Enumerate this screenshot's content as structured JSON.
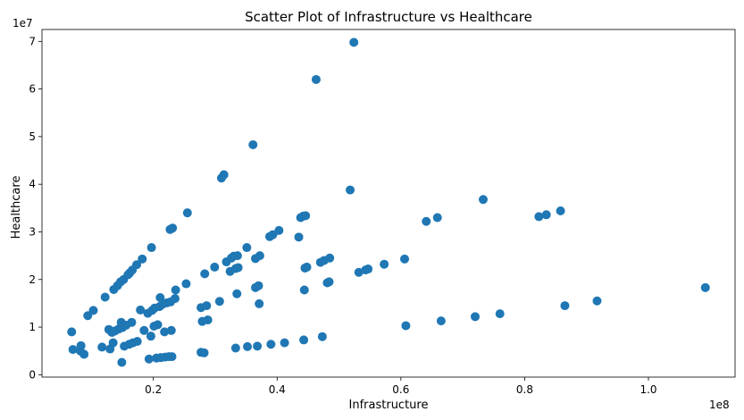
{
  "chart_data": {
    "type": "scatter",
    "title": "Scatter Plot of Infrastructure vs Healthcare",
    "xlabel": "Infrastructure",
    "ylabel": "Healthcare",
    "x_offset_label": "1e8",
    "y_offset_label": "1e7",
    "xlim": [
      2000000,
      114000000
    ],
    "ylim": [
      -500000,
      72500000
    ],
    "x_ticks": [
      20000000,
      40000000,
      60000000,
      80000000,
      100000000
    ],
    "x_tick_labels": [
      "0.2",
      "0.4",
      "0.6",
      "0.8",
      "1.0"
    ],
    "y_ticks": [
      0,
      10000000,
      20000000,
      30000000,
      40000000,
      50000000,
      60000000,
      70000000
    ],
    "y_tick_labels": [
      "0",
      "1",
      "2",
      "3",
      "4",
      "5",
      "6",
      "7"
    ],
    "grid": false,
    "marker_color": "#1f77b4",
    "points": [
      [
        6800000,
        9000000
      ],
      [
        7000000,
        5300000
      ],
      [
        8200000,
        5000000
      ],
      [
        8300000,
        6100000
      ],
      [
        8800000,
        4300000
      ],
      [
        9400000,
        12400000
      ],
      [
        10300000,
        13500000
      ],
      [
        11700000,
        5800000
      ],
      [
        12200000,
        16300000
      ],
      [
        12800000,
        9500000
      ],
      [
        13000000,
        5400000
      ],
      [
        13300000,
        8900000
      ],
      [
        13500000,
        6700000
      ],
      [
        13600000,
        17900000
      ],
      [
        13800000,
        9200000
      ],
      [
        14200000,
        18700000
      ],
      [
        14400000,
        9600000
      ],
      [
        14700000,
        19500000
      ],
      [
        14800000,
        11000000
      ],
      [
        14900000,
        2600000
      ],
      [
        15000000,
        9900000
      ],
      [
        15200000,
        20000000
      ],
      [
        15300000,
        6000000
      ],
      [
        15600000,
        10400000
      ],
      [
        15900000,
        21000000
      ],
      [
        16100000,
        6400000
      ],
      [
        16200000,
        21400000
      ],
      [
        16500000,
        11000000
      ],
      [
        16600000,
        22000000
      ],
      [
        16700000,
        6700000
      ],
      [
        17300000,
        23100000
      ],
      [
        17400000,
        7000000
      ],
      [
        17900000,
        13600000
      ],
      [
        18200000,
        24300000
      ],
      [
        18500000,
        9300000
      ],
      [
        19100000,
        12900000
      ],
      [
        19300000,
        3300000
      ],
      [
        19600000,
        8100000
      ],
      [
        19700000,
        26700000
      ],
      [
        19800000,
        13500000
      ],
      [
        20100000,
        10200000
      ],
      [
        20200000,
        14000000
      ],
      [
        20500000,
        3500000
      ],
      [
        20700000,
        10500000
      ],
      [
        21000000,
        14300000
      ],
      [
        21100000,
        16200000
      ],
      [
        21200000,
        3600000
      ],
      [
        21500000,
        14800000
      ],
      [
        21800000,
        9000000
      ],
      [
        21900000,
        3700000
      ],
      [
        22200000,
        15100000
      ],
      [
        22500000,
        3800000
      ],
      [
        22700000,
        30500000
      ],
      [
        22800000,
        15300000
      ],
      [
        22900000,
        9300000
      ],
      [
        23000000,
        3800000
      ],
      [
        23100000,
        30800000
      ],
      [
        23500000,
        16000000
      ],
      [
        23600000,
        17800000
      ],
      [
        25300000,
        19100000
      ],
      [
        25500000,
        34000000
      ],
      [
        27700000,
        4700000
      ],
      [
        27700000,
        14100000
      ],
      [
        27900000,
        11200000
      ],
      [
        28200000,
        4600000
      ],
      [
        28300000,
        21200000
      ],
      [
        28600000,
        14500000
      ],
      [
        28800000,
        11500000
      ],
      [
        29900000,
        22600000
      ],
      [
        30700000,
        15400000
      ],
      [
        31000000,
        41300000
      ],
      [
        31400000,
        42000000
      ],
      [
        31800000,
        23700000
      ],
      [
        32400000,
        21700000
      ],
      [
        32600000,
        24500000
      ],
      [
        33000000,
        24900000
      ],
      [
        33300000,
        22300000
      ],
      [
        33300000,
        5600000
      ],
      [
        33500000,
        17000000
      ],
      [
        33600000,
        25000000
      ],
      [
        33700000,
        22500000
      ],
      [
        35100000,
        26700000
      ],
      [
        35200000,
        5900000
      ],
      [
        36100000,
        48300000
      ],
      [
        36500000,
        24400000
      ],
      [
        36500000,
        18300000
      ],
      [
        36800000,
        6000000
      ],
      [
        37000000,
        18700000
      ],
      [
        37100000,
        14900000
      ],
      [
        37200000,
        25000000
      ],
      [
        38800000,
        29000000
      ],
      [
        39000000,
        6400000
      ],
      [
        39300000,
        29400000
      ],
      [
        40300000,
        30300000
      ],
      [
        41200000,
        6700000
      ],
      [
        43500000,
        28900000
      ],
      [
        43800000,
        33000000
      ],
      [
        44200000,
        33300000
      ],
      [
        44300000,
        7300000
      ],
      [
        44400000,
        17800000
      ],
      [
        44500000,
        22400000
      ],
      [
        44600000,
        33400000
      ],
      [
        44800000,
        22600000
      ],
      [
        46300000,
        62000000
      ],
      [
        47000000,
        23600000
      ],
      [
        47300000,
        8000000
      ],
      [
        47600000,
        24000000
      ],
      [
        48100000,
        19300000
      ],
      [
        48400000,
        19500000
      ],
      [
        48500000,
        24500000
      ],
      [
        51800000,
        38800000
      ],
      [
        52400000,
        69800000
      ],
      [
        53200000,
        21500000
      ],
      [
        54300000,
        22000000
      ],
      [
        54700000,
        22200000
      ],
      [
        57300000,
        23200000
      ],
      [
        60600000,
        24300000
      ],
      [
        60800000,
        10300000
      ],
      [
        64100000,
        32200000
      ],
      [
        65900000,
        33000000
      ],
      [
        66500000,
        11300000
      ],
      [
        72000000,
        12200000
      ],
      [
        73300000,
        36800000
      ],
      [
        76000000,
        12800000
      ],
      [
        82300000,
        33200000
      ],
      [
        83500000,
        33600000
      ],
      [
        85800000,
        34400000
      ],
      [
        86500000,
        14500000
      ],
      [
        91700000,
        15500000
      ],
      [
        109200000,
        18300000
      ]
    ]
  }
}
